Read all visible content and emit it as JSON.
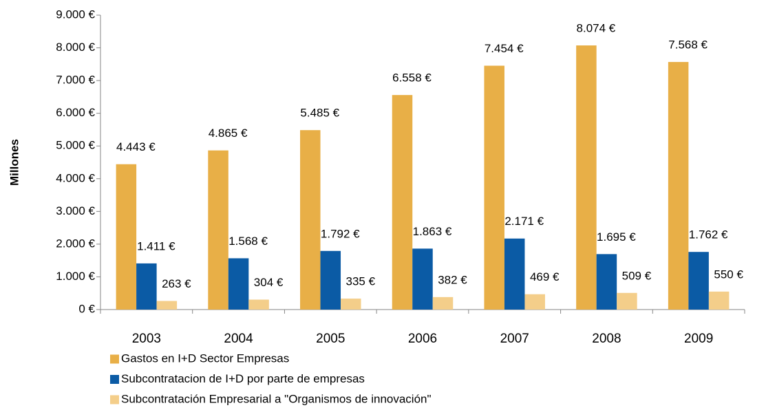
{
  "chart_data": {
    "type": "bar",
    "y_label": "Millones",
    "categories": [
      "2003",
      "2004",
      "2005",
      "2006",
      "2007",
      "2008",
      "2009"
    ],
    "series": [
      {
        "name": "Gastos en I+D Sector Empresas",
        "color": "#E8AF47",
        "values": [
          4443,
          4865,
          5485,
          6558,
          7454,
          8074,
          7568
        ],
        "value_labels": [
          "4.443 €",
          "4.865 €",
          "5.485 €",
          "6.558 €",
          "7.454 €",
          "8.074 €",
          "7.568 €"
        ]
      },
      {
        "name": "Subcontratacion de I+D por parte de empresas",
        "color": "#0B5BA5",
        "values": [
          1411,
          1568,
          1792,
          1863,
          2171,
          1695,
          1762
        ],
        "value_labels": [
          "1.411 €",
          "1.568 €",
          "1.792 €",
          "1.863 €",
          "2.171 €",
          "1.695 €",
          "1.762 €"
        ]
      },
      {
        "name": "Subcontratación Empresarial a \"Organismos de innovación\"",
        "color": "#F4CE8A",
        "values": [
          263,
          304,
          335,
          382,
          469,
          509,
          550
        ],
        "value_labels": [
          "263 €",
          "304 €",
          "335 €",
          "382 €",
          "469 €",
          "509 €",
          "550 €"
        ]
      }
    ],
    "ylim": [
      0,
      9000
    ],
    "yticks": [
      {
        "value": 0,
        "label": "0 €"
      },
      {
        "value": 1000,
        "label": "1.000 €"
      },
      {
        "value": 2000,
        "label": "2.000 €"
      },
      {
        "value": 3000,
        "label": "3.000 €"
      },
      {
        "value": 4000,
        "label": "4.000 €"
      },
      {
        "value": 5000,
        "label": "5.000 €"
      },
      {
        "value": 6000,
        "label": "6.000 €"
      },
      {
        "value": 7000,
        "label": "7.000 €"
      },
      {
        "value": 8000,
        "label": "8.000 €"
      },
      {
        "value": 9000,
        "label": "9.000 €"
      }
    ],
    "grid": false,
    "legend": "bottom"
  }
}
